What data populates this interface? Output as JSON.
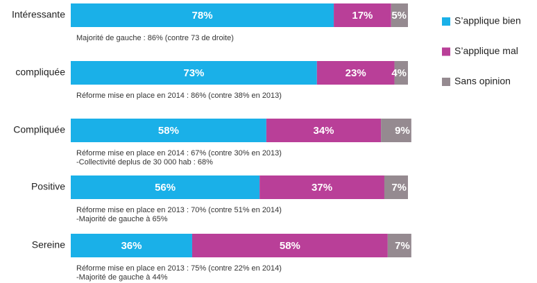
{
  "chart_data": {
    "type": "bar",
    "orientation": "horizontal",
    "stacked": true,
    "categories": [
      "Intéressante",
      "compliquée",
      "Compliquée",
      "Positive",
      "Sereine"
    ],
    "series": [
      {
        "name": "S’applique bien",
        "color": "#1ab0e8",
        "values": [
          78,
          73,
          58,
          56,
          36
        ],
        "value_labels": [
          "78%",
          "73%",
          "58%",
          "56%",
          "36%"
        ]
      },
      {
        "name": "S’applique mal",
        "color": "#b93f98",
        "values": [
          17,
          23,
          34,
          37,
          58
        ],
        "value_labels": [
          "17%",
          "23%",
          "34%",
          "37%",
          "58%"
        ]
      },
      {
        "name": "Sans opinion",
        "color": "#958a90",
        "values": [
          5,
          4,
          9,
          7,
          7
        ],
        "value_labels": [
          "5%",
          "4%",
          "9%",
          "7%",
          "7%"
        ]
      }
    ],
    "annotations": [
      [
        "Majorité de gauche : 86% (contre 73 de droite)"
      ],
      [
        "Réforme mise en place en 2014 : 86% (contre 38% en 2013)"
      ],
      [
        "Réforme mise en place en 2014 : 67% (contre 30% en 2013)",
        "-Collectivité deplus de 30 000 hab : 68%"
      ],
      [
        "Réforme mise en place en 2013 : 70% (contre 51% en 2014)",
        "-Majorité de gauche à 65%"
      ],
      [
        "Réforme mise en place en 2013 : 75% (contre 22% en 2014)",
        "-Majorité de gauche à 44%"
      ]
    ],
    "xlim": [
      0,
      100
    ]
  }
}
